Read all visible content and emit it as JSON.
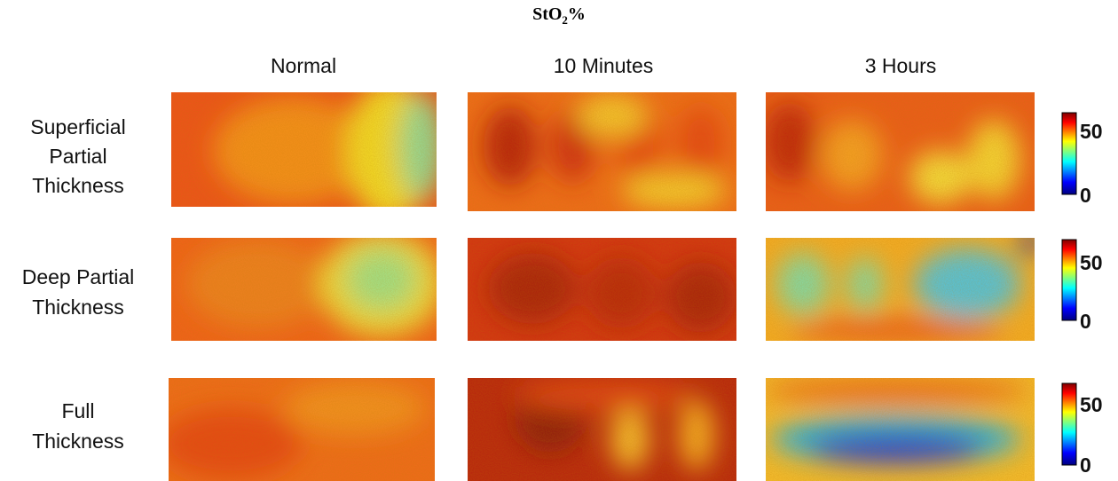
{
  "title": {
    "main": "StO",
    "subscript": "2",
    "suffix": "%"
  },
  "columns": [
    "Normal",
    "10 Minutes",
    "3 Hours"
  ],
  "rows": [
    {
      "lines": [
        "Superficial",
        "Partial",
        "Thickness"
      ]
    },
    {
      "lines": [
        "Deep Partial",
        "Thickness"
      ]
    },
    {
      "lines": [
        "Full",
        "Thickness"
      ]
    }
  ],
  "colorbar": {
    "top_label": "50",
    "bottom_label": "0"
  }
}
